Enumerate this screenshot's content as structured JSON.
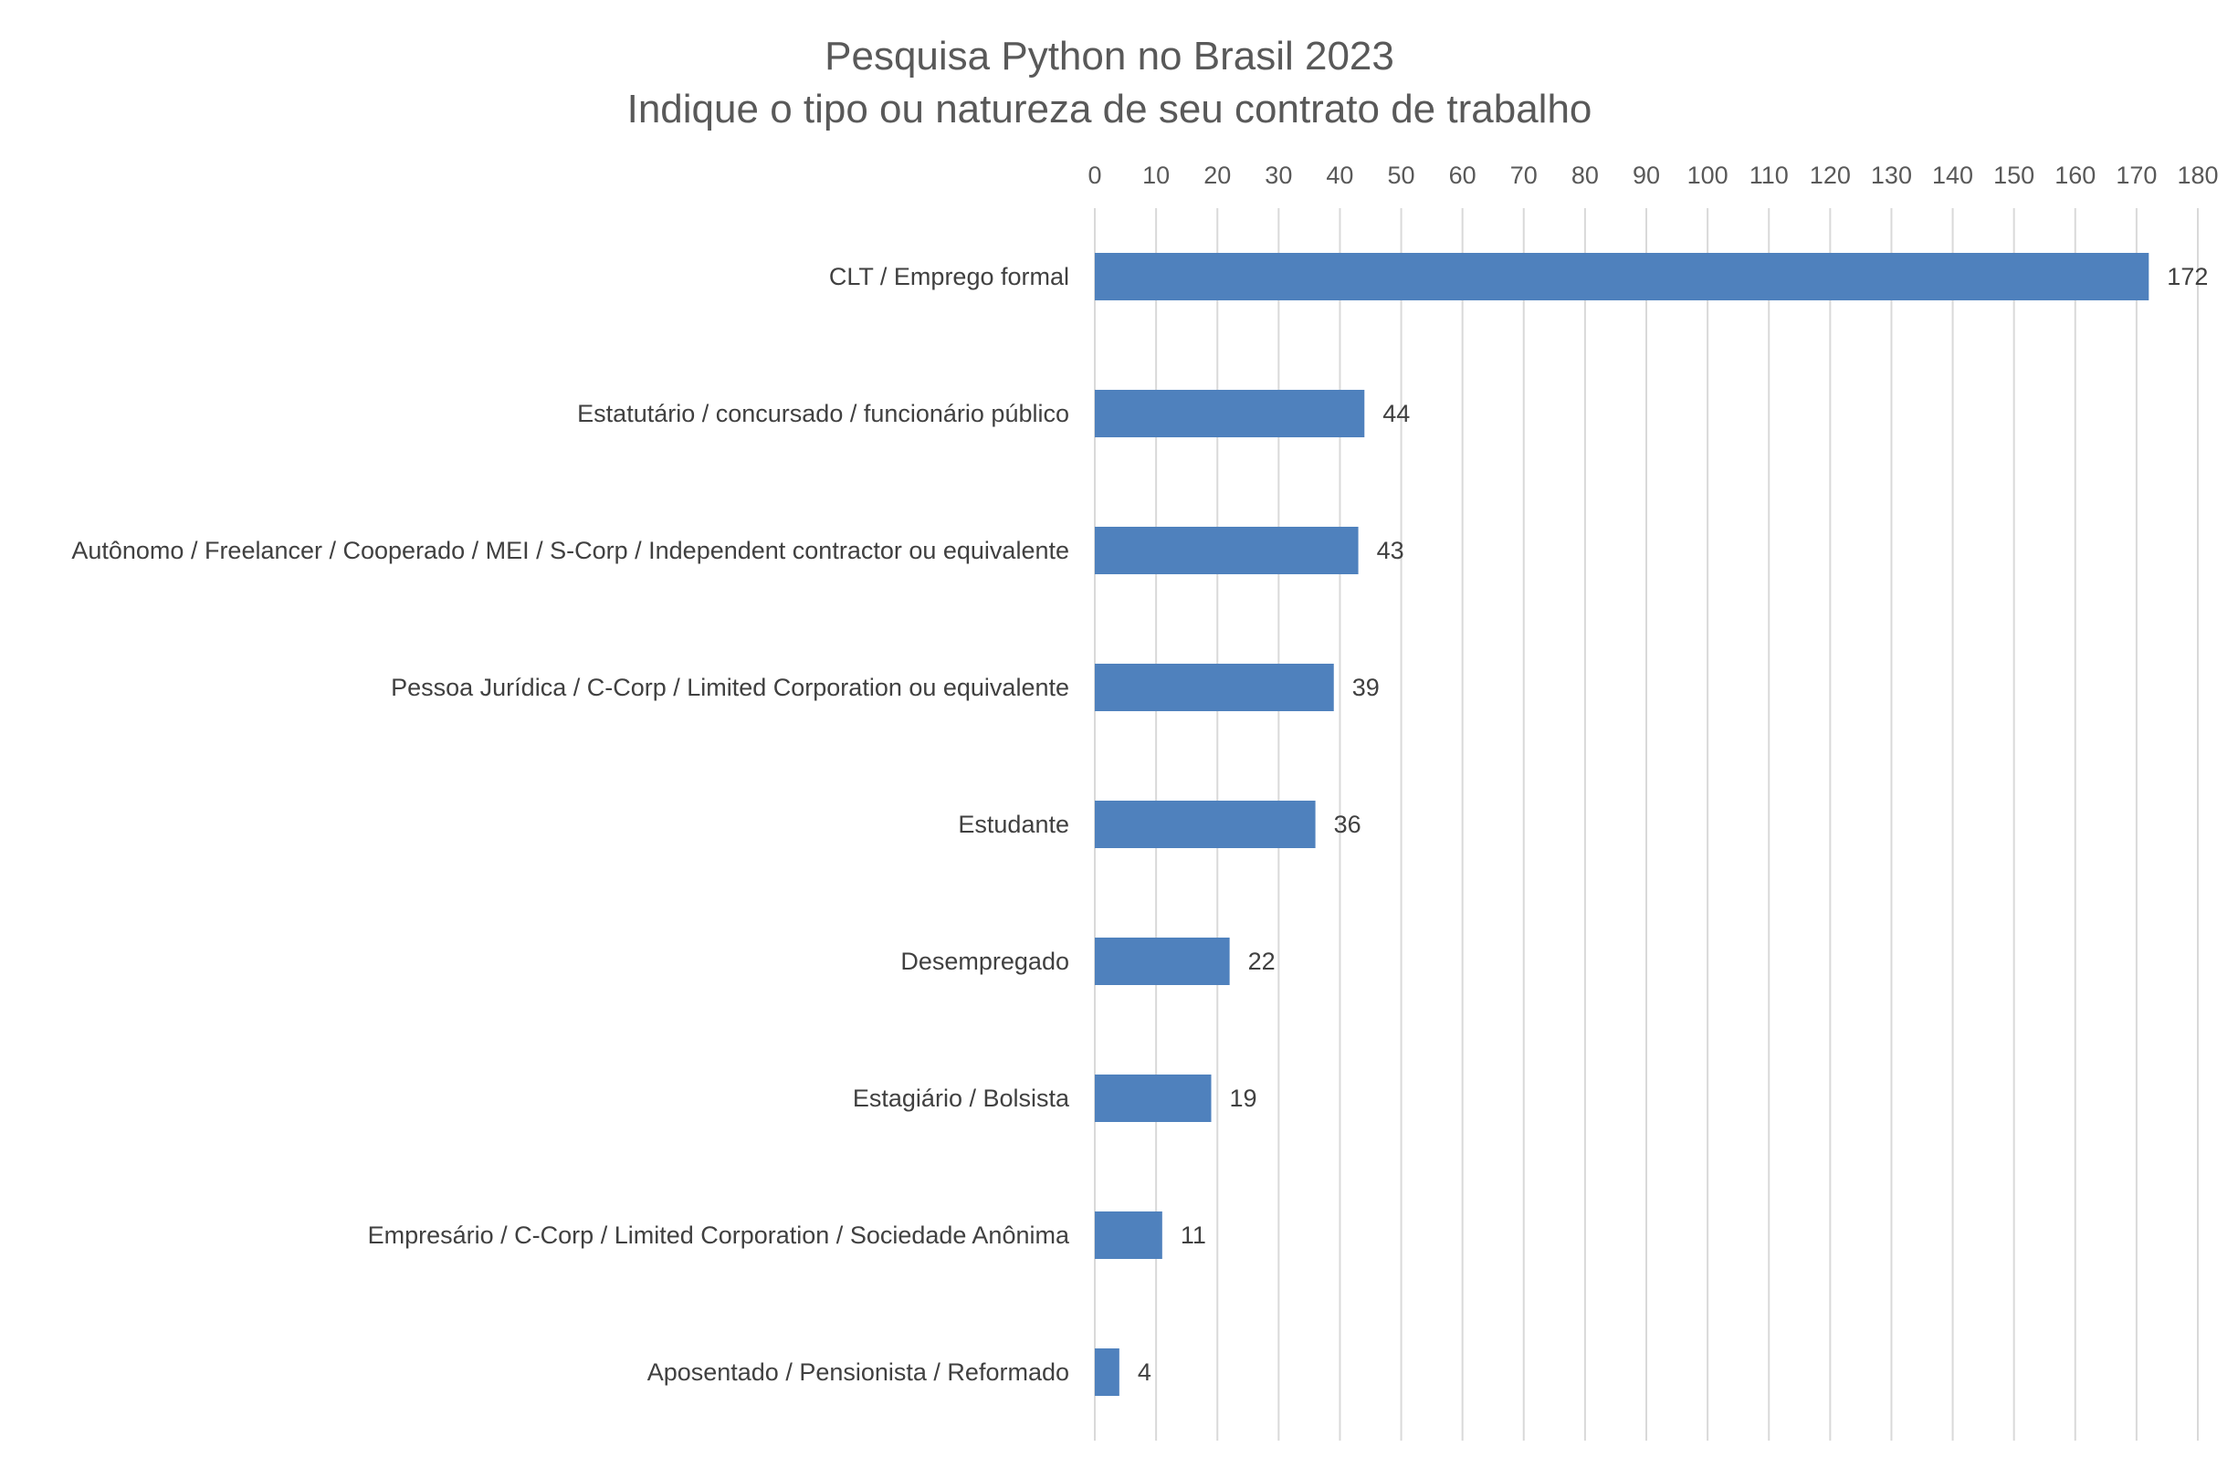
{
  "chart_data": {
    "type": "bar",
    "orientation": "horizontal",
    "title": "Pesquisa Python no Brasil 2023",
    "subtitle": "Indique o tipo ou natureza de seu contrato de trabalho",
    "xlabel": "",
    "ylabel": "",
    "xlim": [
      0,
      180
    ],
    "tick_step": 10,
    "axis_position": "top",
    "grid": true,
    "legend": "none",
    "bar_color": "#4f81bd",
    "categories": [
      "CLT / Emprego formal",
      "Estatutário / concursado / funcionário público",
      "Autônomo / Freelancer / Cooperado / MEI / S-Corp / Independent contractor ou equivalente",
      "Pessoa Jurídica / C-Corp / Limited Corporation ou equivalente",
      "Estudante",
      "Desempregado",
      "Estagiário / Bolsista",
      "Empresário / C-Corp / Limited Corporation / Sociedade Anônima",
      "Aposentado / Pensionista / Reformado"
    ],
    "values": [
      172,
      44,
      43,
      39,
      36,
      22,
      19,
      11,
      4
    ]
  }
}
